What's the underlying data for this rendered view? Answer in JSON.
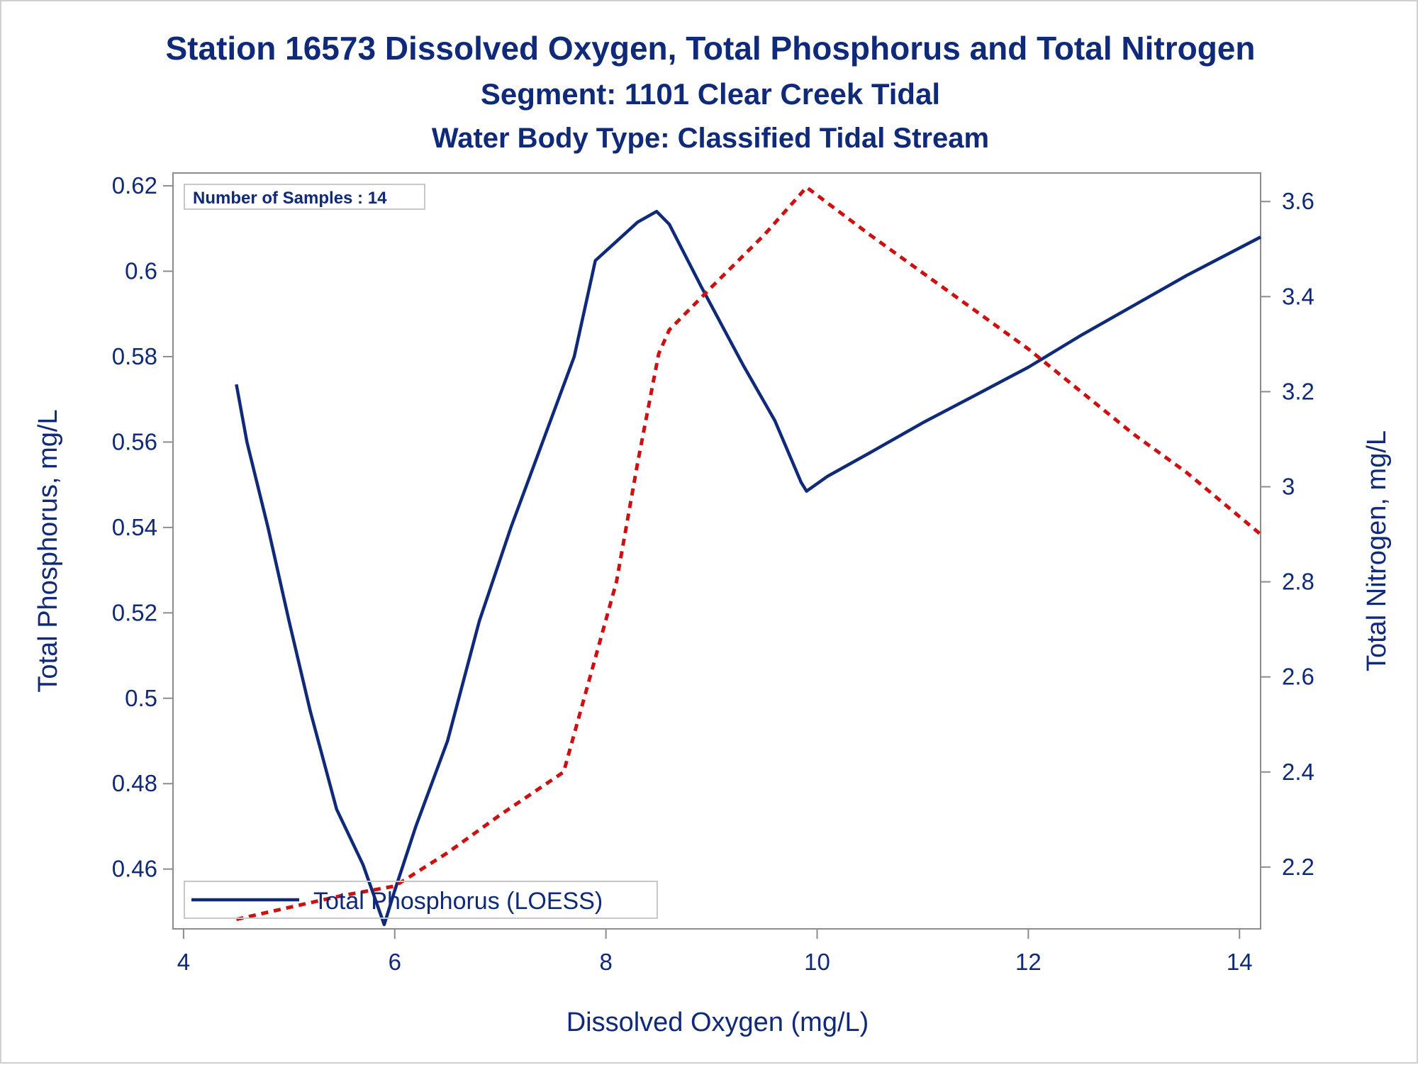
{
  "titles": {
    "line1": "Station 16573  Dissolved Oxygen, Total Phosphorus and Total Nitrogen",
    "line2": "Segment: 1101  Clear Creek Tidal",
    "line3": "Water Body Type: Classified Tidal Stream"
  },
  "inset": {
    "text": "Number of Samples : 14"
  },
  "legend": {
    "label": "Total Phosphorus (LOESS)"
  },
  "colors": {
    "text": "#0f2a78",
    "phosphorus": "#0f2a78",
    "nitrogen": "#cc1111",
    "axis": "#8c8c8c"
  },
  "chart_data": {
    "type": "line",
    "xlabel": "Dissolved Oxygen (mg/L)",
    "ylabel": "Total Phosphorus, mg/L",
    "y2label": "Total Nitrogen, mg/L",
    "xlim": [
      3.9,
      14.2
    ],
    "ylim": [
      0.446,
      0.623
    ],
    "y2lim": [
      2.07,
      3.66
    ],
    "xticks": [
      4,
      6,
      8,
      10,
      12,
      14
    ],
    "xtick_labels": [
      "4",
      "6",
      "8",
      "10",
      "12",
      "14"
    ],
    "yticks": [
      0.46,
      0.48,
      0.5,
      0.52,
      0.54,
      0.56,
      0.58,
      0.6,
      0.62
    ],
    "ytick_labels": [
      "0.46",
      "0.48",
      "0.5",
      "0.52",
      "0.54",
      "0.56",
      "0.58",
      "0.6",
      "0.62"
    ],
    "y2ticks": [
      2.2,
      2.4,
      2.6,
      2.8,
      3,
      3.2,
      3.4,
      3.6
    ],
    "y2tick_labels": [
      "2.2",
      "2.4",
      "2.6",
      "2.8",
      "3",
      "3.2",
      "3.4",
      "3.6"
    ],
    "legend_position": "bottom-left",
    "series": [
      {
        "name": "Total Phosphorus (LOESS)",
        "axis": "left",
        "style": "solid",
        "x": [
          4.5,
          4.6,
          4.8,
          5.0,
          5.2,
          5.45,
          5.7,
          5.9,
          6.0,
          6.2,
          6.5,
          6.8,
          7.1,
          7.4,
          7.7,
          7.9,
          8.1,
          8.3,
          8.48,
          8.6,
          8.9,
          9.3,
          9.6,
          9.85,
          9.9,
          10.1,
          10.5,
          11.0,
          11.5,
          12.0,
          12.5,
          13.0,
          13.5,
          14.2
        ],
        "y": [
          0.5735,
          0.56,
          0.54,
          0.518,
          0.497,
          0.474,
          0.461,
          0.447,
          0.455,
          0.47,
          0.49,
          0.518,
          0.54,
          0.56,
          0.58,
          0.6025,
          0.607,
          0.6115,
          0.614,
          0.611,
          0.5965,
          0.578,
          0.565,
          0.5505,
          0.5485,
          0.552,
          0.5575,
          0.5645,
          0.571,
          0.5775,
          0.585,
          0.592,
          0.599,
          0.608
        ]
      },
      {
        "name": "Total Nitrogen",
        "axis": "right",
        "style": "dashed",
        "x": [
          4.5,
          5.0,
          5.5,
          6.0,
          6.5,
          7.0,
          7.6,
          7.8,
          8.1,
          8.3,
          8.5,
          8.6,
          9.0,
          9.5,
          9.9,
          10.5,
          11.0,
          11.5,
          12.0,
          12.5,
          13.0,
          13.5,
          14.2
        ],
        "y": [
          2.09,
          2.115,
          2.14,
          2.16,
          2.23,
          2.31,
          2.4,
          2.56,
          2.8,
          3.05,
          3.28,
          3.33,
          3.42,
          3.53,
          3.63,
          3.53,
          3.45,
          3.37,
          3.29,
          3.2,
          3.11,
          3.03,
          2.9
        ]
      }
    ]
  }
}
